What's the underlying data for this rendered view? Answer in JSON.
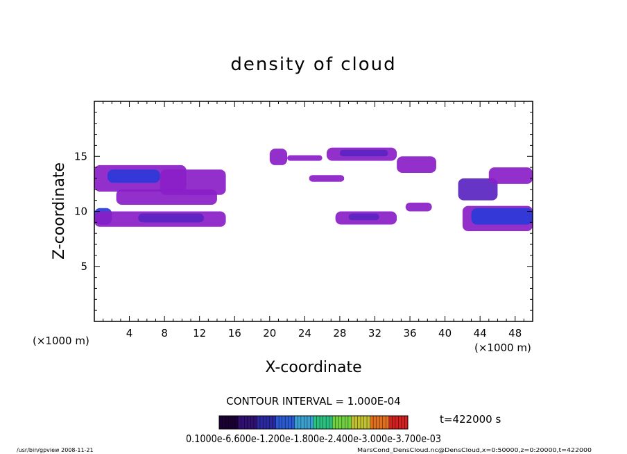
{
  "chart_data": {
    "type": "contour",
    "title": "density of cloud",
    "xlabel": "X-coordinate",
    "ylabel": "Z-coordinate",
    "x_unit": "(×1000 m)",
    "y_unit": "(×1000 m)",
    "xlim": [
      0,
      50
    ],
    "ylim": [
      0,
      20
    ],
    "x_ticks": [
      4,
      8,
      12,
      16,
      20,
      24,
      28,
      32,
      36,
      40,
      44,
      48
    ],
    "y_ticks": [
      5,
      10,
      15
    ],
    "contour_interval_text": "CONTOUR INTERVAL = 1.000E-04",
    "time_text": "t=422000 s",
    "colorbar": {
      "levels": 10,
      "colors": [
        "#1a0033",
        "#301070",
        "#2a2aa0",
        "#2a5ad0",
        "#3aa0d0",
        "#2ac080",
        "#70d040",
        "#c0c030",
        "#e07020",
        "#d02020"
      ],
      "labels_text": "0.1000e-6.600e-1.200e-1.800e-2.400e-3.000e-3.700e-03"
    },
    "regions": [
      {
        "x": [
          0.0,
          10.5
        ],
        "z": [
          11.8,
          14.2
        ],
        "density": "low"
      },
      {
        "x": [
          1.5,
          7.5
        ],
        "z": [
          12.6,
          13.8
        ],
        "density": "high"
      },
      {
        "x": [
          7.5,
          15.0
        ],
        "z": [
          11.5,
          13.8
        ],
        "density": "low"
      },
      {
        "x": [
          2.5,
          14.0
        ],
        "z": [
          10.6,
          12.0
        ],
        "density": "low"
      },
      {
        "x": [
          0.0,
          2.0
        ],
        "z": [
          8.8,
          10.3
        ],
        "density": "high"
      },
      {
        "x": [
          0.0,
          15.0
        ],
        "z": [
          8.6,
          10.0
        ],
        "density": "low"
      },
      {
        "x": [
          5.0,
          12.5
        ],
        "z": [
          9.0,
          9.8
        ],
        "density": "medium"
      },
      {
        "x": [
          20.0,
          22.0
        ],
        "z": [
          14.2,
          15.7
        ],
        "density": "low"
      },
      {
        "x": [
          22.0,
          26.0
        ],
        "z": [
          14.6,
          15.1
        ],
        "density": "low"
      },
      {
        "x": [
          26.5,
          34.5
        ],
        "z": [
          14.6,
          15.8
        ],
        "density": "low"
      },
      {
        "x": [
          28.0,
          33.5
        ],
        "z": [
          15.0,
          15.6
        ],
        "density": "medium"
      },
      {
        "x": [
          34.5,
          39.0
        ],
        "z": [
          13.5,
          15.0
        ],
        "density": "low"
      },
      {
        "x": [
          24.5,
          28.5
        ],
        "z": [
          12.7,
          13.3
        ],
        "density": "low"
      },
      {
        "x": [
          27.5,
          34.5
        ],
        "z": [
          8.8,
          10.0
        ],
        "density": "low"
      },
      {
        "x": [
          29.0,
          32.5
        ],
        "z": [
          9.2,
          9.8
        ],
        "density": "medium"
      },
      {
        "x": [
          35.5,
          38.5
        ],
        "z": [
          10.0,
          10.8
        ],
        "density": "low"
      },
      {
        "x": [
          41.5,
          46.0
        ],
        "z": [
          11.0,
          13.0
        ],
        "density": "medium"
      },
      {
        "x": [
          42.0,
          50.0
        ],
        "z": [
          8.2,
          10.5
        ],
        "density": "low"
      },
      {
        "x": [
          43.0,
          50.0
        ],
        "z": [
          8.8,
          10.3
        ],
        "density": "high"
      },
      {
        "x": [
          45.0,
          50.0
        ],
        "z": [
          12.5,
          14.0
        ],
        "density": "low"
      }
    ]
  },
  "footer": {
    "left": "/usr/bin/gpview   2008-11-21",
    "right": "MarsCond_DensCloud.nc@DensCloud,x=0:50000,z=0:20000,t=422000"
  }
}
